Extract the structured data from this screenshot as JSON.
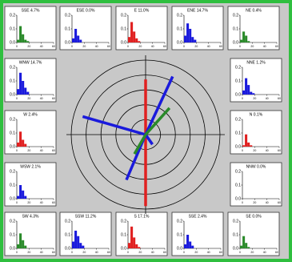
{
  "axis": {
    "ylim": [
      0,
      0.2
    ],
    "yticks": [
      {
        "value": 0,
        "label": "0.0"
      },
      0.1,
      0.2
    ],
    "xlim": [
      0,
      60
    ],
    "xticks": [
      0,
      20,
      40,
      60
    ],
    "bins": [
      0,
      4,
      8,
      12,
      16,
      20
    ]
  },
  "panels": [
    {
      "label": "SSE 4.7%",
      "color": "#2a8a2a",
      "values": [
        0.02,
        0.12,
        0.06,
        0.02,
        0.01
      ]
    },
    {
      "label": "ESE 0.0%",
      "color": "#1a1adc",
      "values": [
        0.03,
        0.1,
        0.05,
        0.02,
        0.0
      ]
    },
    {
      "label": "E 11.0%",
      "color": "#e02020",
      "values": [
        0.04,
        0.15,
        0.08,
        0.03,
        0.01
      ]
    },
    {
      "label": "ENE 14.7%",
      "color": "#1a1adc",
      "values": [
        0.05,
        0.14,
        0.1,
        0.04,
        0.02
      ]
    },
    {
      "label": "NE 0.4%",
      "color": "#2a8a2a",
      "values": [
        0.02,
        0.08,
        0.05,
        0.01,
        0.0
      ]
    },
    {
      "label": "WNW 14.7%",
      "color": "#1a1adc",
      "values": [
        0.04,
        0.16,
        0.1,
        0.05,
        0.02
      ]
    },
    {
      "label": "W 2.4%",
      "color": "#e02020",
      "values": [
        0.03,
        0.11,
        0.05,
        0.02,
        0.0
      ]
    },
    {
      "label": "WSW 2.1%",
      "color": "#1a1adc",
      "values": [
        0.02,
        0.1,
        0.06,
        0.02,
        0.0
      ]
    },
    {
      "label": "NNE 1.2%",
      "color": "#1a1adc",
      "values": [
        0.03,
        0.12,
        0.07,
        0.02,
        0.01
      ]
    },
    {
      "label": "N 0.1%",
      "color": "#e02020",
      "values": [
        0.01,
        0.09,
        0.03,
        0.01,
        0.0
      ]
    },
    {
      "label": "NNW 0.0%",
      "color": "#1a1adc",
      "values": [
        0,
        0,
        0,
        0,
        0
      ]
    },
    {
      "label": "SW 4.3%",
      "color": "#2a8a2a",
      "values": [
        0.03,
        0.11,
        0.06,
        0.02,
        0.0
      ]
    },
    {
      "label": "SSW 11.2%",
      "color": "#1a1adc",
      "values": [
        0.05,
        0.13,
        0.09,
        0.04,
        0.02
      ]
    },
    {
      "label": "S 17.1%",
      "color": "#e02020",
      "values": [
        0.04,
        0.16,
        0.08,
        0.03,
        0.01
      ]
    },
    {
      "label": "SSE 2.4%",
      "color": "#1a1adc",
      "values": [
        0.03,
        0.1,
        0.05,
        0.02,
        0.0
      ]
    },
    {
      "label": "SE 0.0%",
      "color": "#2a8a2a",
      "values": [
        0.02,
        0.09,
        0.04,
        0.01,
        0.0
      ]
    }
  ],
  "polar": {
    "rlim": [
      0,
      5
    ],
    "rings": [
      1,
      2,
      3,
      4,
      5
    ],
    "rays": [
      {
        "color": "#e02020",
        "angle": 0,
        "length": 3.7
      },
      {
        "color": "#e02020",
        "angle": 180,
        "length": 4.8
      },
      {
        "color": "#1a1adc",
        "angle": 25,
        "length": 4.3
      },
      {
        "color": "#1a1adc",
        "angle": 286,
        "length": 4.4
      },
      {
        "color": "#1a1adc",
        "angle": 203,
        "length": 3.3
      },
      {
        "color": "#1a1adc",
        "angle": 145,
        "length": 0.8
      },
      {
        "color": "#2a8a2a",
        "angle": 42,
        "length": 2.4
      },
      {
        "color": "#2a8a2a",
        "angle": 210,
        "length": 1.5
      }
    ]
  }
}
